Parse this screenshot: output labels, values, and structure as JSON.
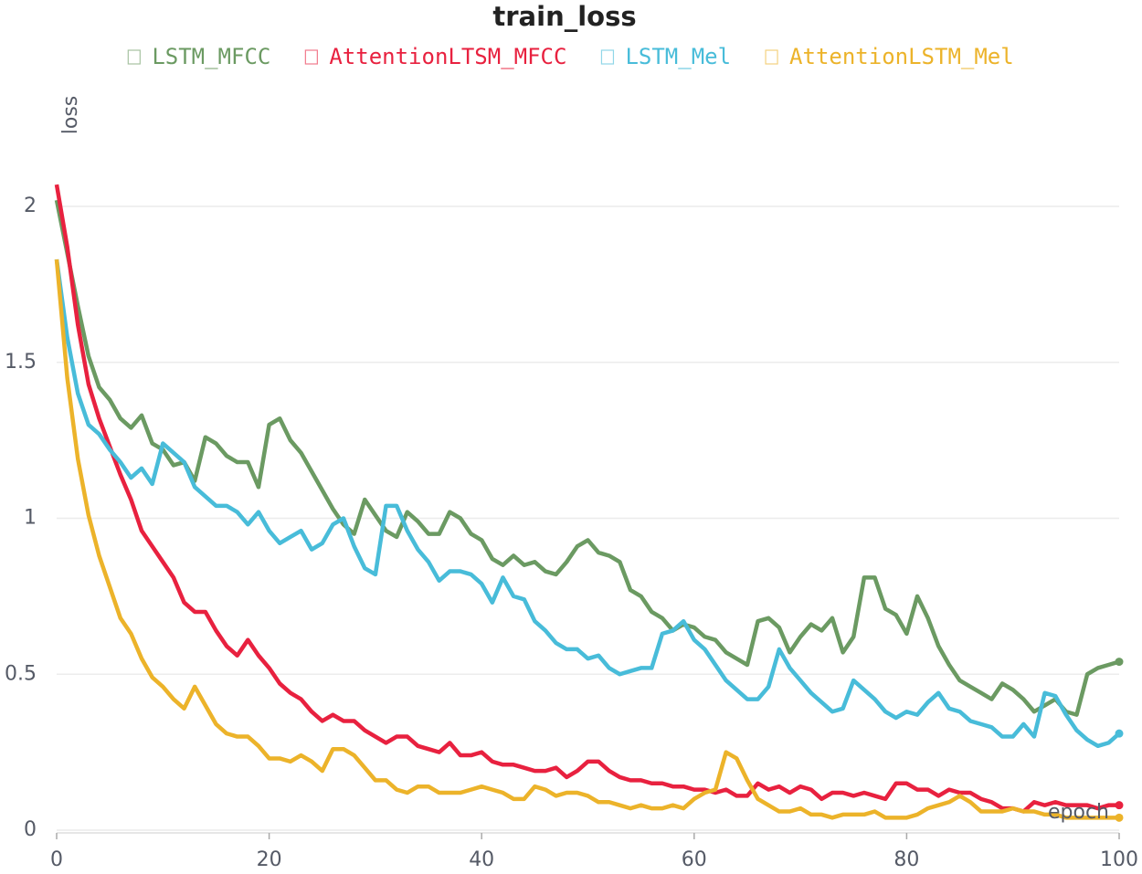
{
  "chart_data": {
    "type": "line",
    "title": "train_loss",
    "y_label": "loss",
    "x_label": "epoch",
    "x": [
      0,
      1,
      2,
      3,
      4,
      5,
      6,
      7,
      8,
      9,
      10,
      11,
      12,
      13,
      14,
      15,
      16,
      17,
      18,
      19,
      20,
      21,
      22,
      23,
      24,
      25,
      26,
      27,
      28,
      29,
      30,
      31,
      32,
      33,
      34,
      35,
      36,
      37,
      38,
      39,
      40,
      41,
      42,
      43,
      44,
      45,
      46,
      47,
      48,
      49,
      50,
      51,
      52,
      53,
      54,
      55,
      56,
      57,
      58,
      59,
      60,
      61,
      62,
      63,
      64,
      65,
      66,
      67,
      68,
      69,
      70,
      71,
      72,
      73,
      74,
      75,
      76,
      77,
      78,
      79,
      80,
      81,
      82,
      83,
      84,
      85,
      86,
      87,
      88,
      89,
      90,
      91,
      92,
      93,
      94,
      95,
      96,
      97,
      98,
      99,
      100
    ],
    "xlim": [
      0,
      100
    ],
    "xticks": [
      0,
      20,
      40,
      60,
      80,
      100
    ],
    "ylim": [
      0,
      2.2
    ],
    "yticks": [
      0,
      0.5,
      1,
      1.5,
      2
    ],
    "grid": true,
    "series": [
      {
        "name": "LSTM_MFCC",
        "color": "#6b9a62",
        "values": [
          2.02,
          1.85,
          1.68,
          1.52,
          1.42,
          1.38,
          1.32,
          1.29,
          1.33,
          1.24,
          1.22,
          1.17,
          1.18,
          1.12,
          1.26,
          1.24,
          1.2,
          1.18,
          1.18,
          1.1,
          1.3,
          1.32,
          1.25,
          1.21,
          1.15,
          1.09,
          1.03,
          0.98,
          0.95,
          1.06,
          1.01,
          0.96,
          0.94,
          1.02,
          0.99,
          0.95,
          0.95,
          1.02,
          1.0,
          0.95,
          0.93,
          0.87,
          0.85,
          0.88,
          0.85,
          0.86,
          0.83,
          0.82,
          0.86,
          0.91,
          0.93,
          0.89,
          0.88,
          0.86,
          0.77,
          0.75,
          0.7,
          0.68,
          0.64,
          0.66,
          0.65,
          0.62,
          0.61,
          0.57,
          0.55,
          0.53,
          0.67,
          0.68,
          0.65,
          0.57,
          0.62,
          0.66,
          0.64,
          0.68,
          0.57,
          0.62,
          0.81,
          0.81,
          0.71,
          0.69,
          0.63,
          0.75,
          0.68,
          0.59,
          0.53,
          0.48,
          0.46,
          0.44,
          0.42,
          0.47,
          0.45,
          0.42,
          0.38,
          0.4,
          0.42,
          0.38,
          0.37,
          0.5,
          0.52,
          0.53,
          0.54
        ]
      },
      {
        "name": "AttentionLTSM_MFCC",
        "color": "#e8213f",
        "values": [
          2.07,
          1.87,
          1.62,
          1.43,
          1.32,
          1.23,
          1.14,
          1.06,
          0.96,
          0.91,
          0.86,
          0.81,
          0.73,
          0.7,
          0.7,
          0.64,
          0.59,
          0.56,
          0.61,
          0.56,
          0.52,
          0.47,
          0.44,
          0.42,
          0.38,
          0.35,
          0.37,
          0.35,
          0.35,
          0.32,
          0.3,
          0.28,
          0.3,
          0.3,
          0.27,
          0.26,
          0.25,
          0.28,
          0.24,
          0.24,
          0.25,
          0.22,
          0.21,
          0.21,
          0.2,
          0.19,
          0.19,
          0.2,
          0.17,
          0.19,
          0.22,
          0.22,
          0.19,
          0.17,
          0.16,
          0.16,
          0.15,
          0.15,
          0.14,
          0.14,
          0.13,
          0.13,
          0.12,
          0.13,
          0.11,
          0.11,
          0.15,
          0.13,
          0.14,
          0.12,
          0.14,
          0.13,
          0.1,
          0.12,
          0.12,
          0.11,
          0.12,
          0.11,
          0.1,
          0.15,
          0.15,
          0.13,
          0.13,
          0.11,
          0.13,
          0.12,
          0.12,
          0.1,
          0.09,
          0.07,
          0.07,
          0.06,
          0.09,
          0.08,
          0.09,
          0.08,
          0.08,
          0.08,
          0.07,
          0.08,
          0.08
        ]
      },
      {
        "name": "LSTM_Mel",
        "color": "#48bcd9",
        "values": [
          1.83,
          1.58,
          1.4,
          1.3,
          1.27,
          1.22,
          1.18,
          1.13,
          1.16,
          1.11,
          1.24,
          1.21,
          1.18,
          1.1,
          1.07,
          1.04,
          1.04,
          1.02,
          0.98,
          1.02,
          0.96,
          0.92,
          0.94,
          0.96,
          0.9,
          0.92,
          0.98,
          1.0,
          0.91,
          0.84,
          0.82,
          1.04,
          1.04,
          0.96,
          0.9,
          0.86,
          0.8,
          0.83,
          0.83,
          0.82,
          0.79,
          0.73,
          0.81,
          0.75,
          0.74,
          0.67,
          0.64,
          0.6,
          0.58,
          0.58,
          0.55,
          0.56,
          0.52,
          0.5,
          0.51,
          0.52,
          0.52,
          0.63,
          0.64,
          0.67,
          0.61,
          0.58,
          0.53,
          0.48,
          0.45,
          0.42,
          0.42,
          0.46,
          0.58,
          0.52,
          0.48,
          0.44,
          0.41,
          0.38,
          0.39,
          0.48,
          0.45,
          0.42,
          0.38,
          0.36,
          0.38,
          0.37,
          0.41,
          0.44,
          0.39,
          0.38,
          0.35,
          0.34,
          0.33,
          0.3,
          0.3,
          0.34,
          0.3,
          0.44,
          0.43,
          0.37,
          0.32,
          0.29,
          0.27,
          0.28,
          0.31
        ]
      },
      {
        "name": "AttentionLSTM_Mel",
        "color": "#ecb32a",
        "values": [
          1.83,
          1.45,
          1.19,
          1.01,
          0.88,
          0.78,
          0.68,
          0.63,
          0.55,
          0.49,
          0.46,
          0.42,
          0.39,
          0.46,
          0.4,
          0.34,
          0.31,
          0.3,
          0.3,
          0.27,
          0.23,
          0.23,
          0.22,
          0.24,
          0.22,
          0.19,
          0.26,
          0.26,
          0.24,
          0.2,
          0.16,
          0.16,
          0.13,
          0.12,
          0.14,
          0.14,
          0.12,
          0.12,
          0.12,
          0.13,
          0.14,
          0.13,
          0.12,
          0.1,
          0.1,
          0.14,
          0.13,
          0.11,
          0.12,
          0.12,
          0.11,
          0.09,
          0.09,
          0.08,
          0.07,
          0.08,
          0.07,
          0.07,
          0.08,
          0.07,
          0.1,
          0.12,
          0.13,
          0.25,
          0.23,
          0.16,
          0.1,
          0.08,
          0.06,
          0.06,
          0.07,
          0.05,
          0.05,
          0.04,
          0.05,
          0.05,
          0.05,
          0.06,
          0.04,
          0.04,
          0.04,
          0.05,
          0.07,
          0.08,
          0.09,
          0.11,
          0.09,
          0.06,
          0.06,
          0.06,
          0.07,
          0.06,
          0.06,
          0.05,
          0.05,
          0.04,
          0.04,
          0.04,
          0.04,
          0.04,
          0.04
        ]
      }
    ]
  }
}
